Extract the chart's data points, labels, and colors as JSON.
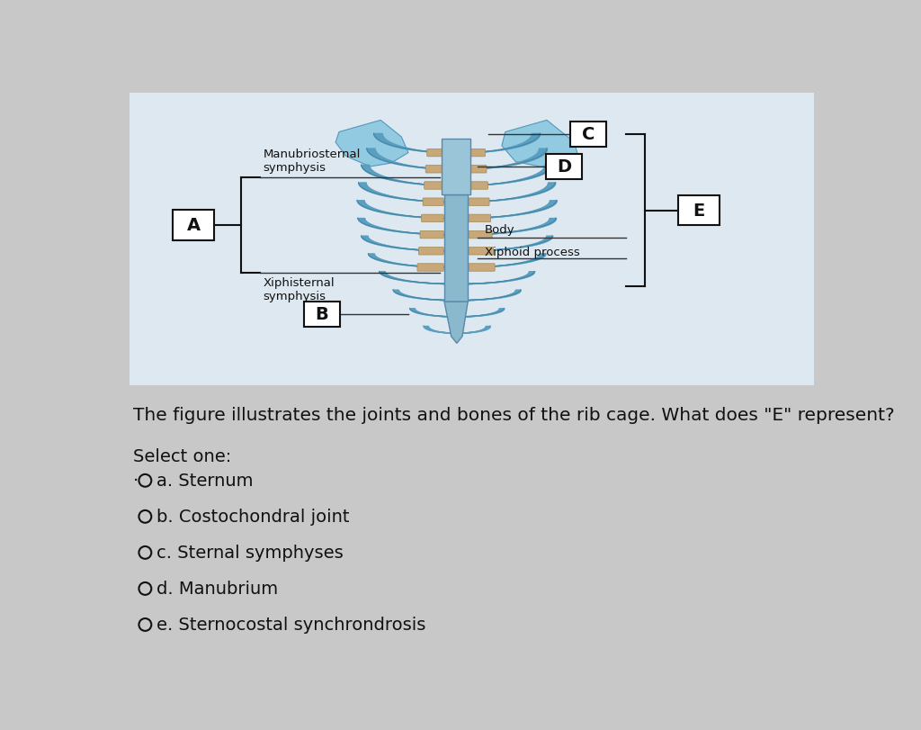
{
  "bg_color": "#c8c8c8",
  "panel_color": "#dde8f0",
  "font_color": "#111111",
  "box_color": "#111111",
  "line_color": "#333333",
  "title_question": "The figure illustrates the joints and bones of the rib cage. What does \"E\" represent?",
  "select_one": "Select one:",
  "options": [
    "a. Sternum",
    "b. Costochondral joint",
    "c. Sternal symphyses",
    "d. Manubrium",
    "e. Sternocostal synchrondrosis"
  ],
  "label_A": "A",
  "label_B": "B",
  "label_C": "C",
  "label_D": "D",
  "label_E": "E",
  "ann_manubrio": "Manubriosternal\nsymphysis",
  "ann_xiphi": "Xiphisternal\nsymphysis",
  "ann_body": "Body",
  "ann_xiphoid": "Xiphoid process",
  "question_fontsize": 14.5,
  "option_fontsize": 14,
  "select_fontsize": 14,
  "label_fontsize": 14
}
